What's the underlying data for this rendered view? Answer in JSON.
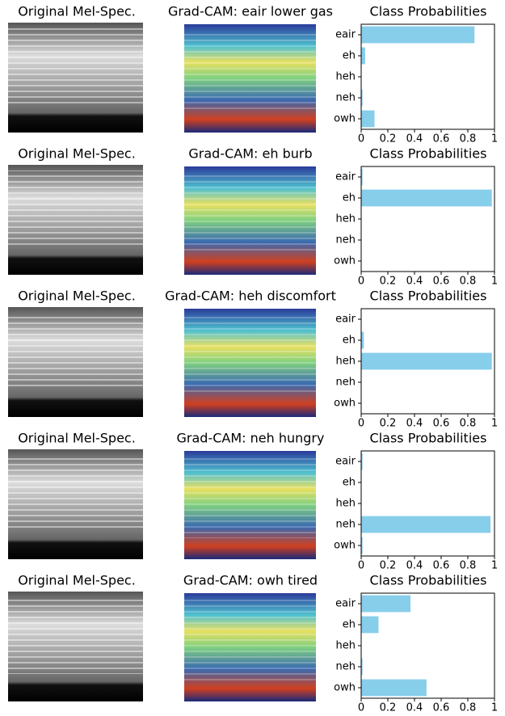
{
  "chart_data": [
    {
      "type": "barh",
      "title": "Class Probabilities",
      "annotations": [
        "Original Mel-Spec.",
        "Grad-CAM: eair lower gas"
      ],
      "categories": [
        "eair",
        "eh",
        "heh",
        "neh",
        "owh"
      ],
      "values": [
        0.85,
        0.03,
        0,
        0.01,
        0.1
      ],
      "color": "#87ceeb",
      "xlim": [
        0,
        1
      ],
      "xticks": [
        0,
        0.2,
        0.4,
        0.6,
        0.8,
        1
      ]
    },
    {
      "type": "barh",
      "title": "Class Probabilities",
      "annotations": [
        "Original Mel-Spec.",
        "Grad-CAM: eh burb"
      ],
      "categories": [
        "eair",
        "eh",
        "heh",
        "neh",
        "owh"
      ],
      "values": [
        0.01,
        0.98,
        0,
        0,
        0
      ],
      "color": "#87ceeb",
      "xlim": [
        0,
        1
      ],
      "xticks": [
        0,
        0.2,
        0.4,
        0.6,
        0.8,
        1
      ]
    },
    {
      "type": "barh",
      "title": "Class Probabilities",
      "annotations": [
        "Original Mel-Spec.",
        "Grad-CAM: heh discomfort"
      ],
      "categories": [
        "eair",
        "eh",
        "heh",
        "neh",
        "owh"
      ],
      "values": [
        0,
        0.02,
        0.98,
        0,
        0
      ],
      "color": "#87ceeb",
      "xlim": [
        0,
        1
      ],
      "xticks": [
        0,
        0.2,
        0.4,
        0.6,
        0.8,
        1
      ]
    },
    {
      "type": "barh",
      "title": "Class Probabilities",
      "annotations": [
        "Original Mel-Spec.",
        "Grad-CAM: neh hungry"
      ],
      "categories": [
        "eair",
        "eh",
        "heh",
        "neh",
        "owh"
      ],
      "values": [
        0.01,
        0,
        0,
        0.97,
        0.01
      ],
      "color": "#87ceeb",
      "xlim": [
        0,
        1
      ],
      "xticks": [
        0,
        0.2,
        0.4,
        0.6,
        0.8,
        1
      ]
    },
    {
      "type": "barh",
      "title": "Class Probabilities",
      "annotations": [
        "Original Mel-Spec.",
        "Grad-CAM: owh tired"
      ],
      "categories": [
        "eair",
        "eh",
        "heh",
        "neh",
        "owh"
      ],
      "values": [
        0.37,
        0.13,
        0,
        0.01,
        0.49
      ],
      "color": "#87ceeb",
      "xlim": [
        0,
        1
      ],
      "xticks": [
        0,
        0.2,
        0.4,
        0.6,
        0.8,
        1
      ]
    }
  ]
}
